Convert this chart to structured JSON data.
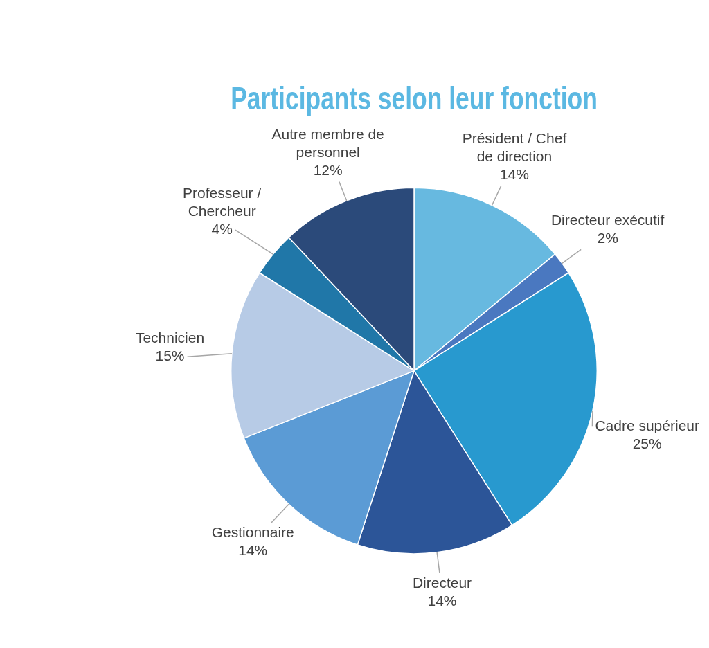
{
  "chart_data": {
    "type": "pie",
    "title": "Participants selon leur fonction",
    "categories": [
      "Président / Chef de direction",
      "Directeur exécutif",
      "Cadre supérieur",
      "Directeur",
      "Gestionnaire",
      "Technicien",
      "Professeur / Chercheur",
      "Autre membre de personnel"
    ],
    "values": [
      14,
      2,
      25,
      14,
      14,
      15,
      4,
      12
    ],
    "value_labels": [
      "14%",
      "2%",
      "25%",
      "14%",
      "14%",
      "15%",
      "4%",
      "12%"
    ],
    "colors": [
      "#67b9e0",
      "#4a78c0",
      "#2899cf",
      "#2c5598",
      "#5b9bd5",
      "#b7cbe6",
      "#2077a8",
      "#2b4a7a"
    ],
    "legend": false
  }
}
